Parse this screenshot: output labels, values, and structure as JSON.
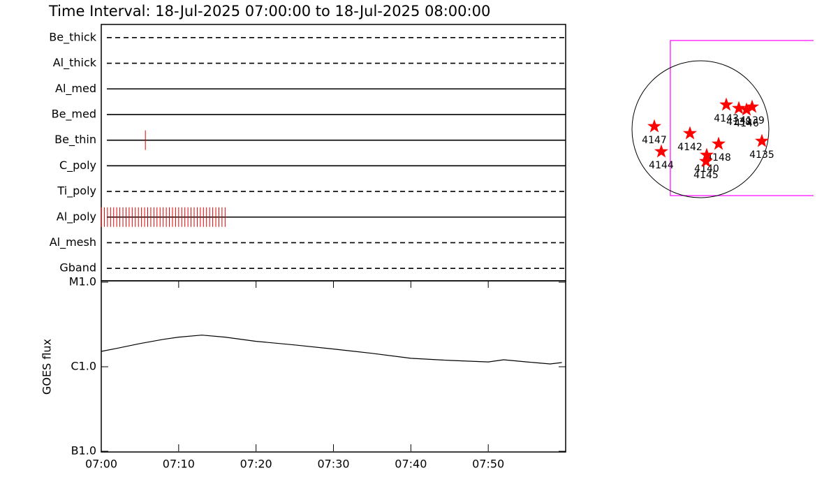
{
  "title": "Time Interval: 18-Jul-2025 07:00:00 to 18-Jul-2025 08:00:00",
  "chart_data": [
    {
      "type": "timeline",
      "categories": [
        "Be_thick",
        "Al_thick",
        "Al_med",
        "Be_med",
        "Be_thin",
        "C_poly",
        "Ti_poly",
        "Al_poly",
        "Al_mesh",
        "Gband"
      ],
      "line_styles": [
        "dashed",
        "dashed",
        "solid",
        "solid",
        "solid",
        "solid",
        "dashed",
        "solid",
        "dashed",
        "dashed"
      ],
      "observations": [
        [],
        [],
        [],
        [],
        [
          5.7
        ],
        [],
        [],
        [
          0,
          0.4,
          0.8,
          1.2,
          1.6,
          2,
          2.4,
          2.8,
          3.2,
          3.6,
          4,
          4.4,
          4.8,
          5.2,
          5.6,
          6,
          6.4,
          6.8,
          7.2,
          7.6,
          8,
          8.4,
          8.8,
          9.2,
          9.6,
          10,
          10.4,
          10.8,
          11.2,
          11.6,
          12,
          12.4,
          12.8,
          13.2,
          13.6,
          14,
          14.4,
          14.8,
          15.2,
          15.6,
          16
        ],
        [],
        []
      ],
      "color": "#e00000",
      "xlim": [
        0,
        60
      ]
    },
    {
      "type": "line",
      "y_label": "GOES flux",
      "log_scale": true,
      "x": [
        0,
        2,
        5,
        8,
        10,
        13,
        16,
        20,
        25,
        30,
        35,
        40,
        45,
        50,
        52,
        55,
        58,
        59.5
      ],
      "values": [
        1.52e-06,
        1.65e-06,
        1.88e-06,
        2.11e-06,
        2.24e-06,
        2.37e-06,
        2.24e-06,
        2e-06,
        1.81e-06,
        1.62e-06,
        1.44e-06,
        1.26e-06,
        1.19e-06,
        1.14e-06,
        1.21e-06,
        1.14e-06,
        1.08e-06,
        1.12e-06
      ],
      "color": "#000000",
      "xlim": [
        0,
        60
      ],
      "xticks": [
        {
          "value": 0,
          "label": "07:00"
        },
        {
          "value": 10,
          "label": "07:10"
        },
        {
          "value": 20,
          "label": "07:20"
        },
        {
          "value": 30,
          "label": "07:30"
        },
        {
          "value": 40,
          "label": "07:40"
        },
        {
          "value": 50,
          "label": "07:50"
        }
      ],
      "ylim": [
        1e-07,
        1e-05
      ],
      "yticks": [
        {
          "value": 1e-07,
          "label": "B1.0"
        },
        {
          "value": 1e-06,
          "label": "C1.0"
        },
        {
          "value": 1e-05,
          "label": "M1.0"
        }
      ]
    },
    {
      "type": "map",
      "labels": [
        "4147",
        "4144",
        "4142",
        "4148",
        "4140",
        "4145",
        "4143",
        "4138",
        "4146",
        "4139",
        "4135"
      ],
      "x": [
        -647,
        -549,
        -147,
        255,
        88,
        78,
        363,
        539,
        647,
        725,
        862
      ],
      "y": [
        39,
        -314,
        -59,
        -206,
        -363,
        -451,
        343,
        294,
        274,
        314,
        -167
      ],
      "color": "#ff0000",
      "fov": {
        "x": 666,
        "y": 157,
        "size": 2176,
        "color": "#ff00ff"
      }
    }
  ]
}
